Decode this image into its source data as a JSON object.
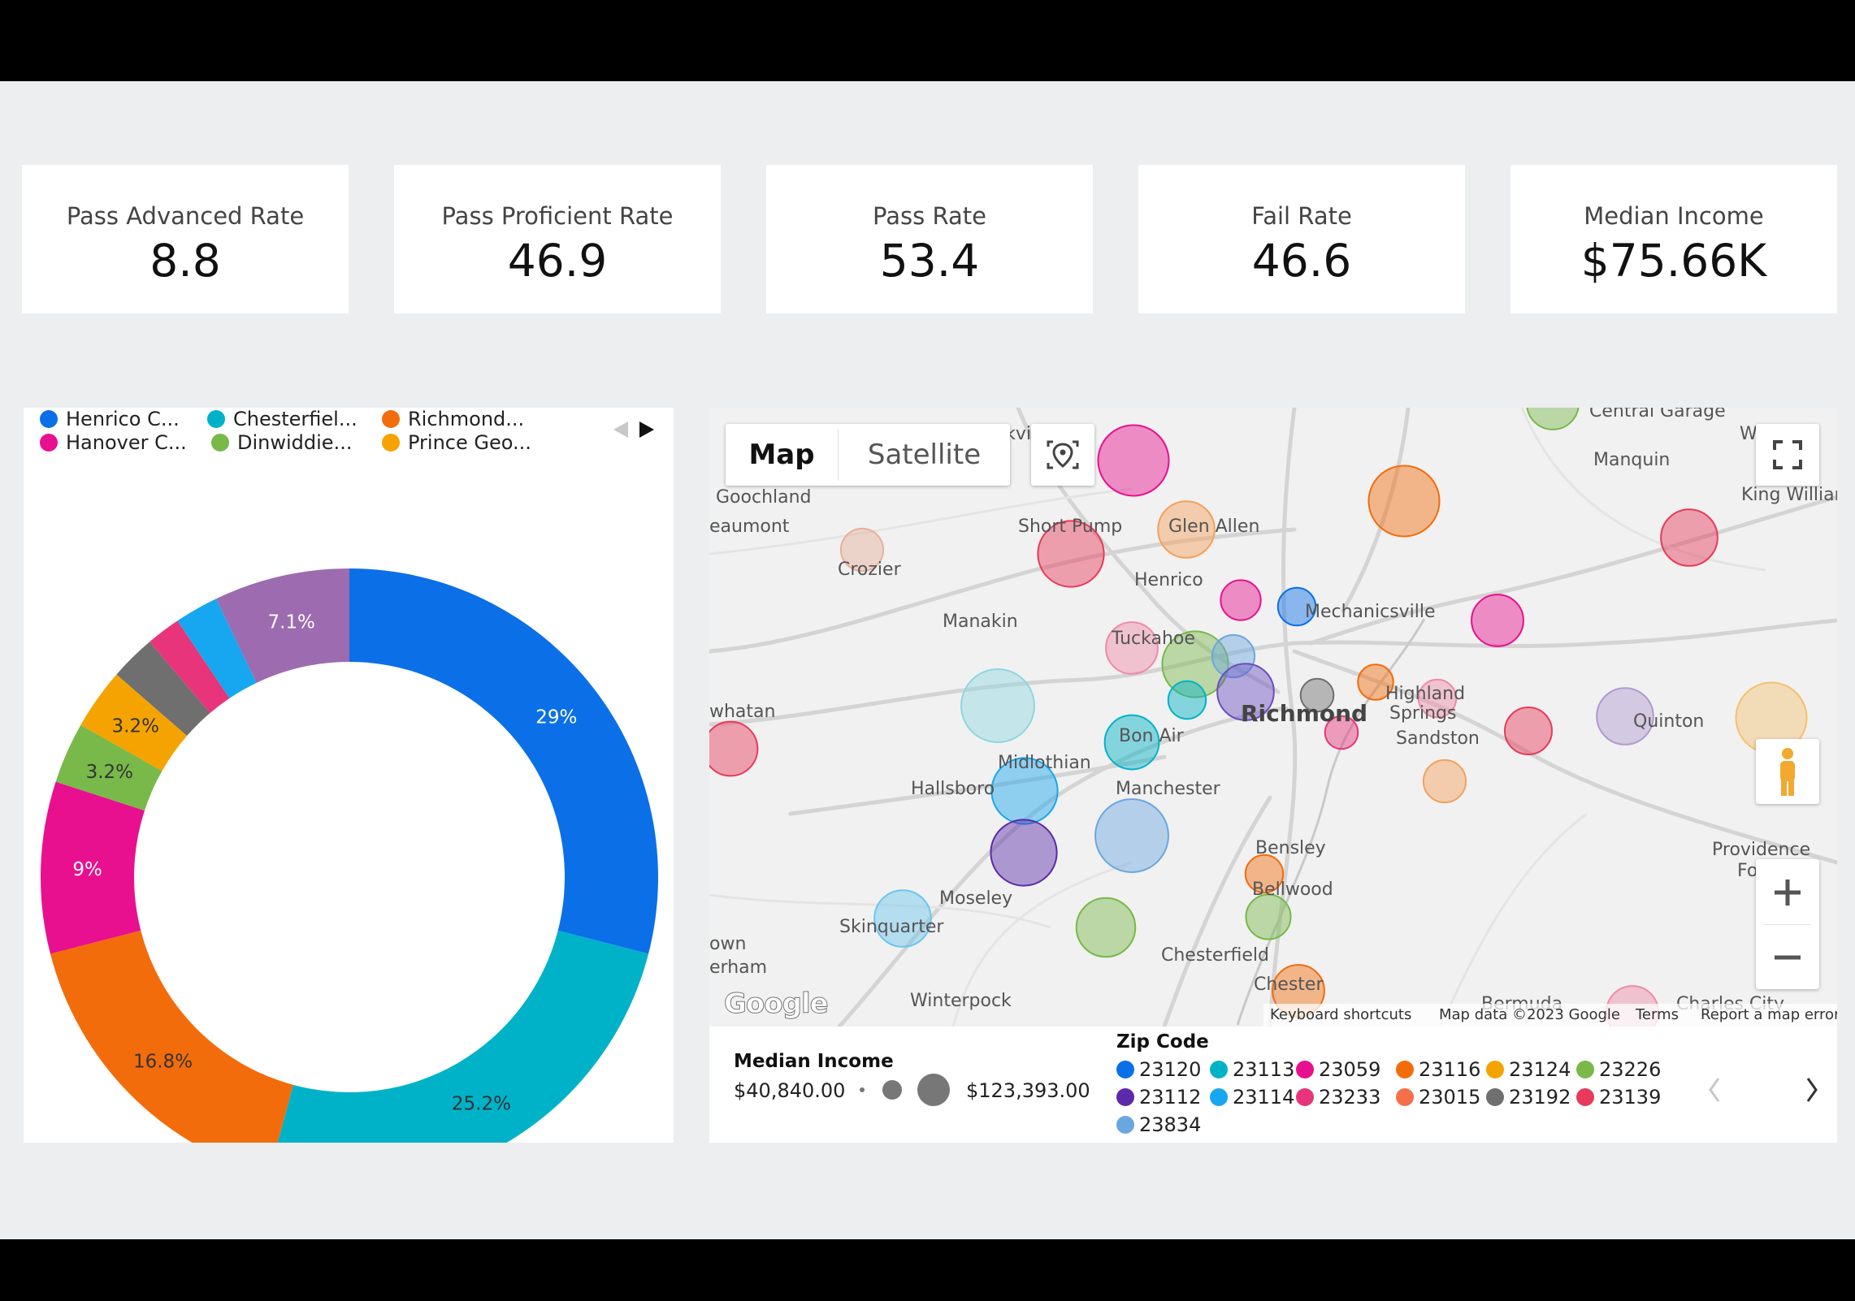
{
  "kpis": [
    {
      "label": "Pass Advanced Rate",
      "value": "8.8"
    },
    {
      "label": "Pass Proficient Rate",
      "value": "46.9"
    },
    {
      "label": "Pass Rate",
      "value": "53.4"
    },
    {
      "label": "Fail Rate",
      "value": "46.6"
    },
    {
      "label": "Median Income",
      "value": "$75.66K"
    }
  ],
  "chart_data": {
    "type": "pie",
    "donut": true,
    "legend": [
      {
        "label": "Henrico C...",
        "color": "#0b6fe8"
      },
      {
        "label": "Chesterfiel...",
        "color": "#00b2c8"
      },
      {
        "label": "Richmond...",
        "color": "#f36c0c"
      },
      {
        "label": "Hanover C...",
        "color": "#e8108e"
      },
      {
        "label": "Dinwiddie...",
        "color": "#78b94a"
      },
      {
        "label": "Prince Geo...",
        "color": "#f5a300"
      }
    ],
    "slices": [
      {
        "value": 29,
        "label": "29%",
        "color": "#0b6fe8"
      },
      {
        "value": 25.2,
        "label": "25.2%",
        "color": "#00b2c8"
      },
      {
        "value": 16.8,
        "label": "16.8%",
        "color": "#f36c0c"
      },
      {
        "value": 9,
        "label": "9%",
        "color": "#e8108e"
      },
      {
        "value": 3.2,
        "label": "3.2%",
        "color": "#78b94a"
      },
      {
        "value": 3.2,
        "label": "3.2%",
        "color": "#f5a300"
      },
      {
        "value": 2.4,
        "label": "",
        "color": "#6f6f6f"
      },
      {
        "value": 1.8,
        "label": "",
        "color": "#e8347a"
      },
      {
        "value": 2.3,
        "label": "",
        "color": "#16a7f0"
      },
      {
        "value": 7.1,
        "label": "7.1%",
        "color": "#9c6bb0"
      }
    ]
  },
  "map": {
    "tabs": [
      "Map",
      "Satellite"
    ],
    "towns": [
      "Goochland",
      "eaumont",
      "Crozier",
      "Short Pump",
      "Glen Allen",
      "Henrico",
      "Mechanicsville",
      "Manakin",
      "Tuckahoe",
      "Highland",
      "Springs",
      "Sandston",
      "Richmond",
      "Bon Air",
      "Midlothian",
      "Hallsboro",
      "Manchester",
      "Bensley",
      "Bellwood",
      "Moseley",
      "Skinquarter",
      "Chesterfield",
      "Chester",
      "Winterpock",
      "Quinton",
      "Providence",
      "Fo",
      "Central Garage",
      "Manquin",
      "King Willian",
      "W",
      "whatan",
      "own",
      "erham",
      "Bermuda",
      "Charles City",
      "ckvil"
    ],
    "footer": [
      "Keyboard shortcuts",
      "Map data ©2023 Google",
      "Terms",
      "Report a map error"
    ],
    "google": "Google",
    "bubbles": [
      {
        "color": "#e8108e",
        "size": 3.0
      },
      {
        "color": "#f36c0c",
        "size": 3.0
      },
      {
        "color": "#e83a5a",
        "size": 2.8
      },
      {
        "color": "#f5a05a",
        "size": 2.4
      },
      {
        "color": "#e6b09a",
        "size": 1.8
      },
      {
        "color": "#e8108e",
        "size": 1.7
      },
      {
        "color": "#0b6fe8",
        "size": 1.6
      },
      {
        "color": "#6f6f6f",
        "size": 1.4
      },
      {
        "color": "#e8108e",
        "size": 2.2
      },
      {
        "color": "#f08aa8",
        "size": 2.2
      },
      {
        "color": "#78b94a",
        "size": 2.8
      },
      {
        "color": "#6aa7e0",
        "size": 1.8
      },
      {
        "color": "#6b4ec0",
        "size": 2.4
      },
      {
        "color": "#00b2c8",
        "size": 1.6
      },
      {
        "color": "#f36c0c",
        "size": 1.5
      },
      {
        "color": "#e8347a",
        "size": 1.4
      },
      {
        "color": "#00b2c8",
        "size": 2.3
      },
      {
        "color": "#8fd6e0",
        "size": 3.1
      },
      {
        "color": "#16a7f0",
        "size": 2.8
      },
      {
        "color": "#5b2aa8",
        "size": 2.8
      },
      {
        "color": "#6aa7e0",
        "size": 3.1
      },
      {
        "color": "#6ac6ee",
        "size": 2.4
      },
      {
        "color": "#f36c0c",
        "size": 1.6
      },
      {
        "color": "#78b94a",
        "size": 2.5
      },
      {
        "color": "#78b94a",
        "size": 1.9
      },
      {
        "color": "#e83a5a",
        "size": 2.3
      },
      {
        "color": "#e83a5a",
        "size": 2.0
      },
      {
        "color": "#f5a05a",
        "size": 1.8
      },
      {
        "color": "#b09ad0",
        "size": 2.4
      },
      {
        "color": "#f5c070",
        "size": 3.0
      },
      {
        "color": "#e83a5a",
        "size": 2.4
      },
      {
        "color": "#f08aa8",
        "size": 1.6
      },
      {
        "color": "#f36c0c",
        "size": 2.2
      },
      {
        "color": "#78b94a",
        "size": 2.2
      },
      {
        "color": "#f08aa8",
        "size": 2.2
      }
    ]
  },
  "income_legend": {
    "title": "Median Income",
    "min": "$40,840.00",
    "max": "$123,393.00"
  },
  "zip_legend": {
    "title": "Zip Code",
    "items": [
      {
        "label": "23120",
        "color": "#0b6fe8"
      },
      {
        "label": "23113",
        "color": "#00b2c8"
      },
      {
        "label": "23059",
        "color": "#e8108e"
      },
      {
        "label": "23116",
        "color": "#f36c0c"
      },
      {
        "label": "23124",
        "color": "#f5a300"
      },
      {
        "label": "23226",
        "color": "#78b94a"
      },
      {
        "label": "23112",
        "color": "#5b2aa8"
      },
      {
        "label": "23114",
        "color": "#16a7f0"
      },
      {
        "label": "23233",
        "color": "#e8347a"
      },
      {
        "label": "23015",
        "color": "#f5704a"
      },
      {
        "label": "23192",
        "color": "#6f6f6f"
      },
      {
        "label": "23139",
        "color": "#e83a5a"
      },
      {
        "label": "23834",
        "color": "#6aa7e0"
      }
    ]
  }
}
